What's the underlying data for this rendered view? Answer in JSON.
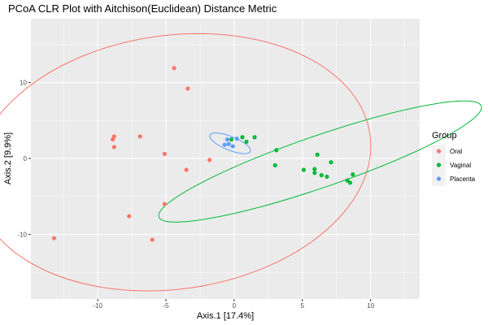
{
  "chart_data": {
    "type": "scatter",
    "title": "PCoA CLR Plot with Aitchison(Euclidean) Distance Metric",
    "xlabel": "Axis.1   [17.4%]",
    "ylabel": "Axis.2   [9.9%]",
    "xlim": [
      -14.9,
      13.6
    ],
    "ylim": [
      -18.5,
      18.4
    ],
    "x_ticks": [
      -10,
      -5,
      0,
      5,
      10
    ],
    "y_ticks": [
      -10,
      0,
      10
    ],
    "grid": true,
    "legend": {
      "title": "Group",
      "position": "right"
    },
    "series": [
      {
        "name": "Oral",
        "color": "#F8766D",
        "points": [
          [
            -4.4,
            11.9
          ],
          [
            -3.4,
            9.2
          ],
          [
            -8.8,
            2.9
          ],
          [
            -8.9,
            2.5
          ],
          [
            -6.9,
            2.9
          ],
          [
            -8.8,
            1.5
          ],
          [
            -5.1,
            0.6
          ],
          [
            -1.8,
            -0.2
          ],
          [
            -3.5,
            -1.5
          ],
          [
            -5.1,
            -6.0
          ],
          [
            -7.7,
            -7.6
          ],
          [
            -6.0,
            -10.7
          ],
          [
            -13.2,
            -10.5
          ]
        ],
        "ellipse": {
          "cx": -4.5,
          "cy": -0.5,
          "rx": 14.6,
          "ry": 16.7,
          "angle": -8
        }
      },
      {
        "name": "Vaginal",
        "color": "#00BA38",
        "points": [
          [
            0.6,
            2.8
          ],
          [
            1.5,
            2.8
          ],
          [
            -0.2,
            2.5
          ],
          [
            0.9,
            2.2
          ],
          [
            3.1,
            1.1
          ],
          [
            6.1,
            0.5
          ],
          [
            7.1,
            -0.5
          ],
          [
            3.0,
            -0.9
          ],
          [
            5.1,
            -1.5
          ],
          [
            5.9,
            -1.4
          ],
          [
            5.9,
            -1.9
          ],
          [
            6.4,
            -2.2
          ],
          [
            6.8,
            -2.4
          ],
          [
            8.7,
            -2.1
          ],
          [
            8.3,
            -2.9
          ],
          [
            8.5,
            -3.2
          ]
        ],
        "ellipse": {
          "cx": 6.3,
          "cy": -0.4,
          "rx": 12.5,
          "ry": 3.4,
          "angle": -19
        }
      },
      {
        "name": "Placenta",
        "color": "#619CFF",
        "points": [
          [
            -0.5,
            2.5
          ],
          [
            0.2,
            2.6
          ],
          [
            -0.4,
            1.9
          ],
          [
            -0.1,
            1.6
          ],
          [
            -0.7,
            1.8
          ]
        ],
        "ellipse": {
          "cx": -0.3,
          "cy": 2.0,
          "rx": 1.6,
          "ry": 0.9,
          "angle": 22
        }
      }
    ]
  }
}
